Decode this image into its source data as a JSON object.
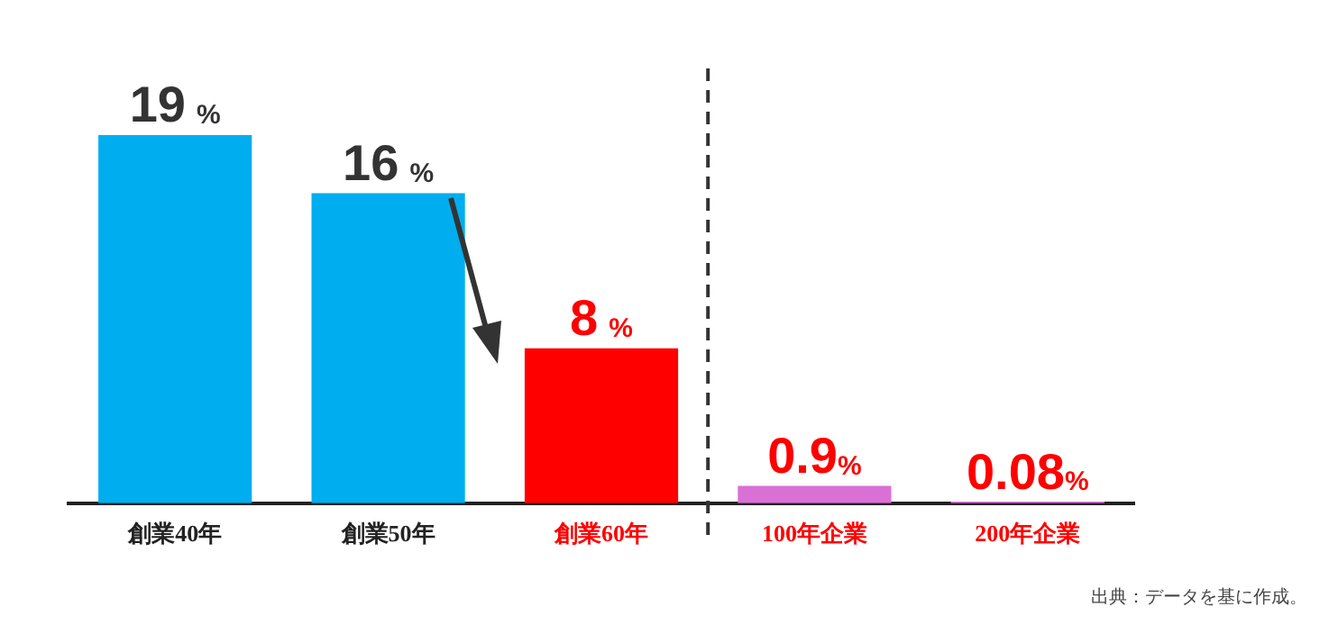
{
  "chart_data": {
    "type": "bar",
    "categories": [
      "創業40年",
      "創業50年",
      "創業60年",
      "100年企業",
      "200年企業"
    ],
    "values": [
      19,
      16,
      8,
      0.9,
      0.08
    ],
    "colors": [
      "#00aeef",
      "#00aeef",
      "#ff0000",
      "#da70d6",
      "#da70d6"
    ],
    "value_labels": [
      "19%",
      "16%",
      "8%",
      "0.9%",
      "0.08%"
    ],
    "annotations": [
      "出典：データを基に作成。"
    ]
  }
}
